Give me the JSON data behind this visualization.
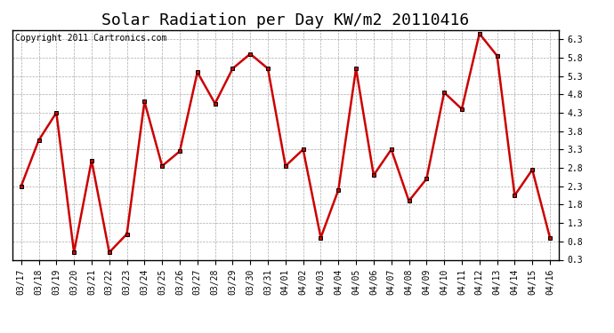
{
  "title": "Solar Radiation per Day KW/m2 20110416",
  "copyright": "Copyright 2011 Cartronics.com",
  "labels": [
    "03/17",
    "03/18",
    "03/19",
    "03/20",
    "03/21",
    "03/22",
    "03/23",
    "03/24",
    "03/25",
    "03/26",
    "03/27",
    "03/28",
    "03/29",
    "03/30",
    "03/31",
    "04/01",
    "04/02",
    "04/03",
    "04/04",
    "04/05",
    "04/06",
    "04/07",
    "04/08",
    "04/09",
    "04/10",
    "04/11",
    "04/12",
    "04/13",
    "04/14",
    "04/15",
    "04/16"
  ],
  "values": [
    2.3,
    3.55,
    4.3,
    0.5,
    3.0,
    0.5,
    1.0,
    4.6,
    2.85,
    3.25,
    5.4,
    4.55,
    5.5,
    5.9,
    5.5,
    2.85,
    3.3,
    0.9,
    2.2,
    5.5,
    2.6,
    3.3,
    1.9,
    2.5,
    4.85,
    4.4,
    6.45,
    5.85,
    2.05,
    2.75,
    0.9
  ],
  "line_color": "#cc0000",
  "marker": "s",
  "marker_size": 3,
  "line_width": 1.8,
  "bg_color": "#ffffff",
  "plot_bg_color": "#ffffff",
  "grid_color": "#aaaaaa",
  "ylim": [
    0.3,
    6.55
  ],
  "yticks": [
    0.3,
    0.8,
    1.3,
    1.8,
    2.3,
    2.8,
    3.3,
    3.8,
    4.3,
    4.8,
    5.3,
    5.8,
    6.3
  ],
  "title_fontsize": 13,
  "copyright_fontsize": 7,
  "tick_fontsize": 7,
  "spine_color": "#000000"
}
